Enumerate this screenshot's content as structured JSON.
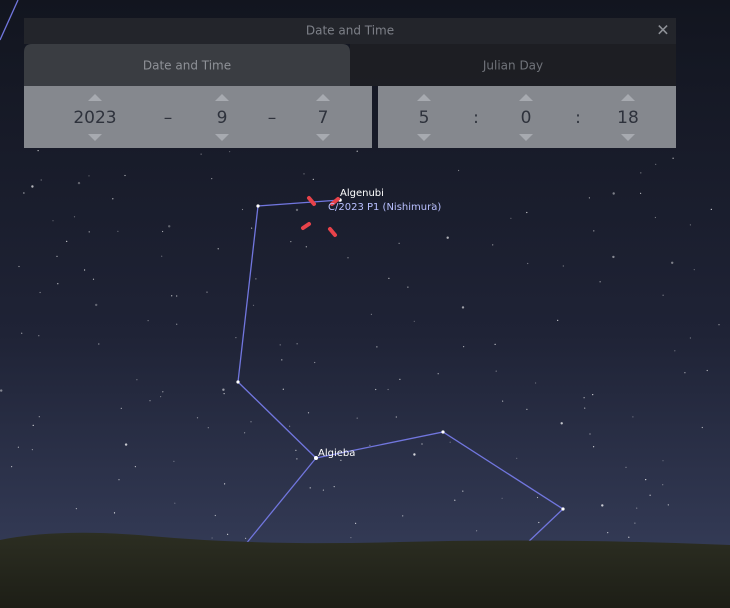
{
  "dialog": {
    "title": "Date and Time",
    "tabs": [
      "Date and Time",
      "Julian Day"
    ],
    "date": {
      "year": 2023,
      "sep1": "–",
      "month": 9,
      "sep2": "–",
      "day": 7
    },
    "time": {
      "hour": 5,
      "sep1": ":",
      "minute": 0,
      "sep2": ":",
      "second": 18
    }
  },
  "sky": {
    "labels": [
      "Algenubi",
      "C/2023 P1 (Nishimura)",
      "Algieba"
    ]
  }
}
